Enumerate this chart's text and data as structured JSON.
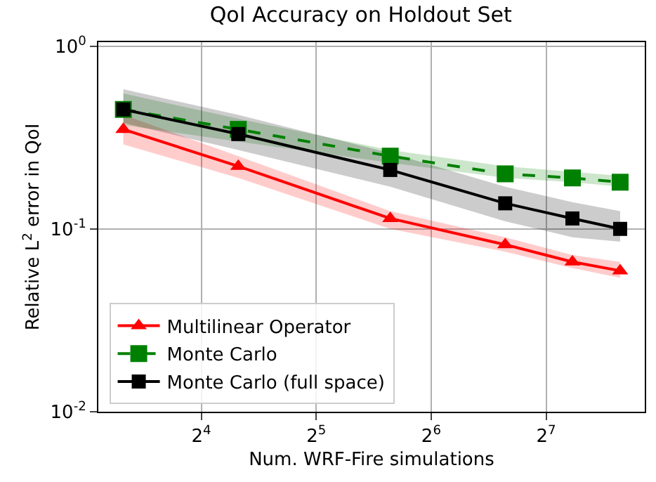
{
  "chart_data": {
    "type": "line",
    "title": "QoI Accuracy on Holdout Set",
    "xlabel": "Num. WRF-Fire simulations",
    "ylabel": "Relative L$^{2}$ error in QoI",
    "x": [
      10,
      20,
      50,
      100,
      150,
      200
    ],
    "series": [
      {
        "name": "Multilinear Operator",
        "color": "#ff0000",
        "marker": "triangle",
        "line_style": "solid",
        "values": [
          0.35,
          0.22,
          0.114,
          0.082,
          0.066,
          0.059
        ],
        "lower": [
          0.29,
          0.19,
          0.1,
          0.075,
          0.061,
          0.054
        ],
        "upper": [
          0.42,
          0.25,
          0.125,
          0.09,
          0.072,
          0.066
        ]
      },
      {
        "name": "Monte Carlo",
        "color": "#008000",
        "marker": "square",
        "line_style": "dashed",
        "values": [
          0.45,
          0.35,
          0.25,
          0.2,
          0.19,
          0.18
        ],
        "lower": [
          0.37,
          0.3,
          0.23,
          0.19,
          0.18,
          0.17
        ],
        "upper": [
          0.55,
          0.4,
          0.27,
          0.22,
          0.205,
          0.195
        ]
      },
      {
        "name": "Monte Carlo (full space)",
        "color": "#000000",
        "marker": "square",
        "line_style": "solid",
        "values": [
          0.45,
          0.33,
          0.21,
          0.138,
          0.114,
          0.1
        ],
        "lower": [
          0.38,
          0.27,
          0.17,
          0.11,
          0.09,
          0.085
        ],
        "upper": [
          0.58,
          0.42,
          0.26,
          0.17,
          0.14,
          0.125
        ]
      }
    ],
    "log": "xy",
    "xlim": [
      8.6,
      232
    ],
    "ylim": [
      0.01,
      1.05
    ],
    "xticks": [
      {
        "value": 16,
        "label": "2$^{4}$"
      },
      {
        "value": 32,
        "label": "2$^{5}$"
      },
      {
        "value": 64,
        "label": "2$^{6}$"
      },
      {
        "value": 128,
        "label": "2$^{7}$"
      }
    ],
    "yticks": [
      {
        "value": 0.01,
        "label": "10$^{-2}$"
      },
      {
        "value": 0.1,
        "label": "10$^{-1}$"
      },
      {
        "value": 1,
        "label": "10$^{0}$"
      }
    ],
    "grid": true,
    "legend": "bottom left"
  }
}
